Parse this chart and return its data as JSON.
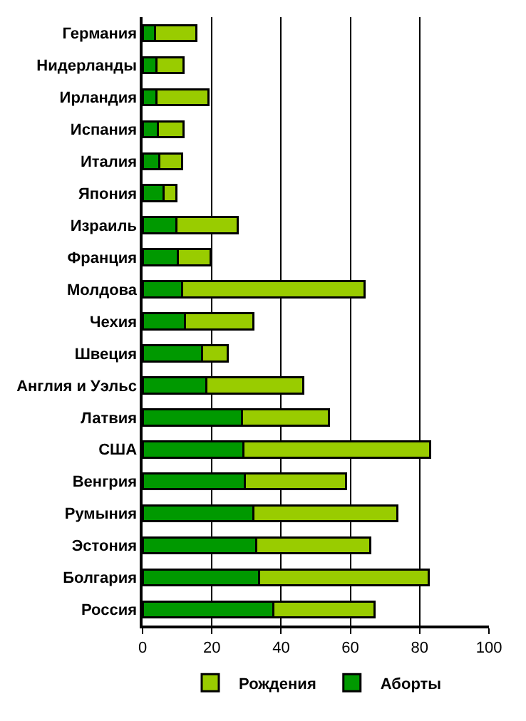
{
  "chart_data": {
    "type": "bar",
    "orientation": "horizontal",
    "stacked": true,
    "categories": [
      "Германия",
      "Нидерланды",
      "Ирландия",
      "Испания",
      "Италия",
      "Япония",
      "Израиль",
      "Франция",
      "Молдова",
      "Чехия",
      "Швеция",
      "Англия и Уэльс",
      "Латвия",
      "США",
      "Венгрия",
      "Румыния",
      "Эстония",
      "Болгария",
      "Россия"
    ],
    "series": [
      {
        "name": "Аборты",
        "color": "#009900",
        "values": [
          3.6,
          4.0,
          4.0,
          4.4,
          4.8,
          6.0,
          9.8,
          10.2,
          11.4,
          12.2,
          17.2,
          18.4,
          28.7,
          29.1,
          29.5,
          32.0,
          32.8,
          33.7,
          37.8
        ]
      },
      {
        "name": "Рождения",
        "color": "#99cc00",
        "values": [
          11.9,
          7.8,
          15.0,
          7.4,
          6.6,
          3.8,
          17.7,
          9.4,
          52.7,
          19.8,
          7.4,
          28.0,
          25.1,
          54.0,
          29.3,
          41.6,
          33.0,
          49.0,
          29.2
        ]
      }
    ],
    "xlim": [
      0,
      100
    ],
    "xticks": [
      0,
      20,
      40,
      60,
      80,
      100
    ],
    "grid": "x",
    "legend": "bottom"
  }
}
